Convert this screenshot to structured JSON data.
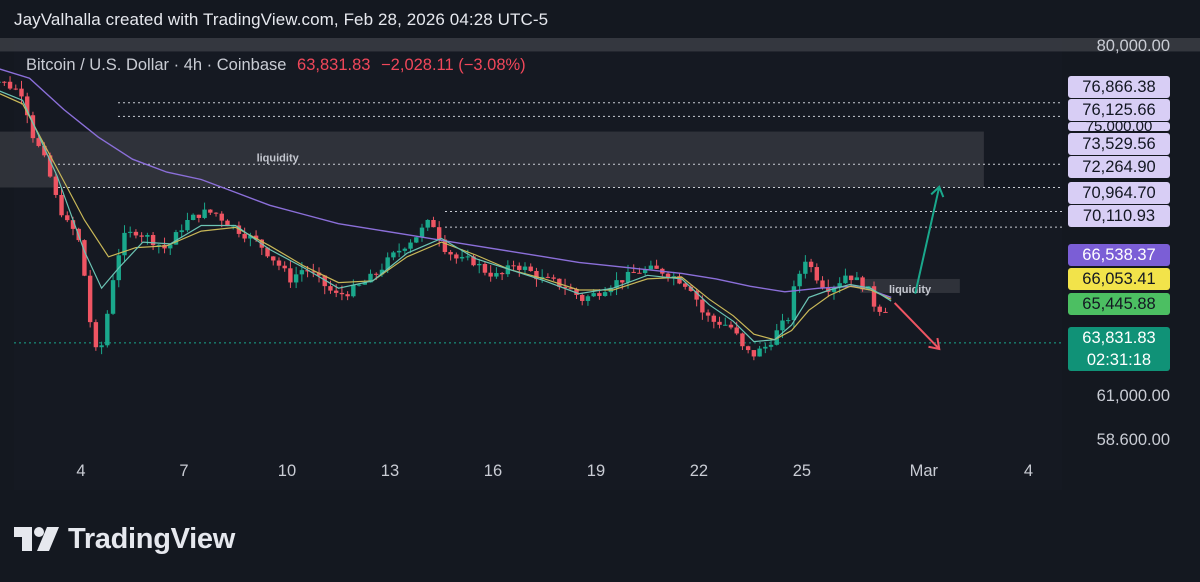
{
  "header": {
    "credit": "JayValhalla created with TradingView.com, Feb 28, 2026 04:28 UTC-5"
  },
  "symbol": {
    "name": "Bitcoin / U.S. Dollar · 4h · Coinbase",
    "last": "63,831.83",
    "change": "−2,028.11 (−3.08%)"
  },
  "footer": {
    "logo_text": "TradingView",
    "logo_icon": "tradingview-logo-icon"
  },
  "colors": {
    "background": "#141820",
    "up": "#1aa88c",
    "down": "#ef5563",
    "sma_purple": "#8b6fd9",
    "ema_yellow": "#c9b858",
    "ema_teal": "#6cc4b4"
  },
  "chart_data": {
    "type": "candlestick",
    "title": "Bitcoin / U.S. Dollar · 4h · Coinbase",
    "interval": "4h",
    "last_price": 63831.83,
    "change": -2028.11,
    "change_percent": -3.08,
    "x_ticks": [
      "4",
      "7",
      "10",
      "13",
      "16",
      "19",
      "22",
      "25",
      "Mar",
      "4"
    ],
    "y_ticks": [
      80000.0,
      61000.0,
      58600.0
    ],
    "y_tick_labels": [
      "80,000.00",
      "61,000.00",
      "58.600.00"
    ],
    "ylim": [
      57600,
      80800
    ],
    "grid": false,
    "price_levels": [
      {
        "label": "76,866.38",
        "value": 76866.38,
        "bg": "#d8cef5",
        "line": "dotted"
      },
      {
        "label": "76,125.66",
        "value": 76125.66,
        "bg": "#d8cef5",
        "line": "dotted"
      },
      {
        "label": "75,000.00",
        "value": 75000.0,
        "bg": "#d8cef5",
        "line": "none"
      },
      {
        "label": "73,529.56",
        "value": 73529.56,
        "bg": "#d8cef5",
        "line": "dotted"
      },
      {
        "label": "72,264.90",
        "value": 72264.9,
        "bg": "#d8cef5",
        "line": "dotted"
      },
      {
        "label": "70,964.70",
        "value": 70964.7,
        "bg": "#d8cef5",
        "line": "dotted"
      },
      {
        "label": "70,110.93",
        "value": 70110.93,
        "bg": "#d8cef5",
        "line": "dotted"
      },
      {
        "label": "66,538.37",
        "value": 66538.37,
        "bg": "#7b5ed6",
        "line": "none"
      },
      {
        "label": "66,053.41",
        "value": 66053.41,
        "bg": "#f2e34a",
        "line": "none"
      },
      {
        "label": "65,445.88",
        "value": 65445.88,
        "bg": "#4cbf62",
        "line": "none"
      }
    ],
    "current_price_tag": {
      "price": "63,831.83",
      "countdown": "02:31:18"
    },
    "zones": [
      {
        "label": "",
        "x_start": 1.0,
        "x_end": 37.0,
        "y_low": 79650,
        "y_high": 80800
      },
      {
        "label": "liquidity",
        "x_start": 1.1,
        "x_end": 30.3,
        "y_low": 72264.9,
        "y_high": 75300
      },
      {
        "label": "liquidity",
        "x_start": 26.7,
        "x_end": 29.6,
        "y_low": 66538.37,
        "y_high": 67300
      }
    ],
    "arrows": [
      {
        "direction": "up",
        "color": "#1aa88c",
        "from": [
          28.3,
          66500
        ],
        "via": [
          28.3,
          66500
        ],
        "to": [
          29.0,
          72300
        ]
      },
      {
        "direction": "down",
        "color": "#ef5563",
        "from": [
          27.7,
          66000
        ],
        "to": [
          29.0,
          63500
        ]
      }
    ],
    "series_shape": {
      "close_path": [
        [
          1.1,
          78200
        ],
        [
          1.4,
          78200
        ],
        [
          1.8,
          77900
        ],
        [
          2.3,
          77400
        ],
        [
          2.6,
          75100
        ],
        [
          3.0,
          73500
        ],
        [
          3.3,
          71500
        ],
        [
          3.6,
          70300
        ],
        [
          3.9,
          69700
        ],
        [
          4.1,
          67500
        ],
        [
          4.3,
          64500
        ],
        [
          4.5,
          62800
        ],
        [
          4.7,
          64600
        ],
        [
          4.9,
          67100
        ],
        [
          5.2,
          69500
        ],
        [
          5.6,
          69900
        ],
        [
          6.0,
          69500
        ],
        [
          6.5,
          68900
        ],
        [
          7.0,
          70300
        ],
        [
          7.5,
          70900
        ],
        [
          7.9,
          70900
        ],
        [
          8.3,
          70300
        ],
        [
          8.8,
          69700
        ],
        [
          9.2,
          69200
        ],
        [
          9.7,
          68200
        ],
        [
          10.1,
          67300
        ],
        [
          10.5,
          67900
        ],
        [
          10.9,
          67300
        ],
        [
          11.4,
          66400
        ],
        [
          11.8,
          66600
        ],
        [
          12.2,
          67000
        ],
        [
          12.6,
          67600
        ],
        [
          13.0,
          68400
        ],
        [
          13.4,
          69100
        ],
        [
          13.8,
          69700
        ],
        [
          14.2,
          70500
        ],
        [
          14.6,
          69000
        ],
        [
          15.0,
          68300
        ],
        [
          15.4,
          68300
        ],
        [
          15.8,
          67700
        ],
        [
          16.2,
          67400
        ],
        [
          16.6,
          68100
        ],
        [
          17.0,
          67800
        ],
        [
          17.4,
          67300
        ],
        [
          17.8,
          67100
        ],
        [
          18.2,
          66800
        ],
        [
          18.6,
          66200
        ],
        [
          19.0,
          66500
        ],
        [
          19.4,
          67000
        ],
        [
          19.8,
          67300
        ],
        [
          20.2,
          67700
        ],
        [
          20.6,
          67800
        ],
        [
          21.0,
          67700
        ],
        [
          21.4,
          67300
        ],
        [
          21.8,
          66800
        ],
        [
          22.1,
          65500
        ],
        [
          22.4,
          65000
        ],
        [
          22.7,
          64900
        ],
        [
          23.0,
          64600
        ],
        [
          23.3,
          63400
        ],
        [
          23.6,
          63200
        ],
        [
          24.0,
          63700
        ],
        [
          24.3,
          64500
        ],
        [
          24.6,
          65200
        ],
        [
          24.8,
          67000
        ],
        [
          25.1,
          68400
        ],
        [
          25.4,
          67500
        ],
        [
          25.7,
          66800
        ],
        [
          26.0,
          67000
        ],
        [
          26.3,
          67600
        ],
        [
          26.6,
          67200
        ],
        [
          26.9,
          66800
        ],
        [
          27.2,
          65500
        ],
        [
          27.4,
          66100
        ],
        [
          27.6,
          63700
        ]
      ],
      "ema_yellow_path": [
        [
          1.1,
          77800
        ],
        [
          2.3,
          76800
        ],
        [
          3.3,
          73300
        ],
        [
          4.1,
          70500
        ],
        [
          4.8,
          68500
        ],
        [
          5.6,
          69000
        ],
        [
          6.5,
          69100
        ],
        [
          7.5,
          69900
        ],
        [
          8.5,
          70100
        ],
        [
          9.5,
          69100
        ],
        [
          10.5,
          68000
        ],
        [
          11.5,
          67100
        ],
        [
          12.5,
          67200
        ],
        [
          13.5,
          68500
        ],
        [
          14.5,
          69300
        ],
        [
          15.5,
          68600
        ],
        [
          16.5,
          67800
        ],
        [
          17.5,
          67300
        ],
        [
          18.5,
          66700
        ],
        [
          19.5,
          66700
        ],
        [
          20.5,
          67300
        ],
        [
          21.5,
          67400
        ],
        [
          22.3,
          66200
        ],
        [
          23.0,
          65300
        ],
        [
          23.6,
          64300
        ],
        [
          24.2,
          64000
        ],
        [
          24.7,
          64500
        ],
        [
          25.2,
          65600
        ],
        [
          25.8,
          66400
        ],
        [
          26.4,
          66900
        ],
        [
          27.0,
          66700
        ],
        [
          27.6,
          66200
        ]
      ],
      "ema_teal_path": [
        [
          1.1,
          77900
        ],
        [
          2.3,
          77000
        ],
        [
          3.3,
          72900
        ],
        [
          4.1,
          68800
        ],
        [
          4.6,
          66800
        ],
        [
          5.1,
          67900
        ],
        [
          5.8,
          69300
        ],
        [
          6.6,
          69200
        ],
        [
          7.5,
          70200
        ],
        [
          8.5,
          70200
        ],
        [
          9.5,
          68900
        ],
        [
          10.5,
          67900
        ],
        [
          11.5,
          66800
        ],
        [
          12.5,
          67200
        ],
        [
          13.5,
          68700
        ],
        [
          14.5,
          69500
        ],
        [
          15.5,
          68400
        ],
        [
          16.5,
          67800
        ],
        [
          17.5,
          67200
        ],
        [
          18.5,
          66500
        ],
        [
          19.5,
          66800
        ],
        [
          20.5,
          67500
        ],
        [
          21.5,
          67300
        ],
        [
          22.3,
          65900
        ],
        [
          23.0,
          65000
        ],
        [
          23.6,
          63900
        ],
        [
          24.2,
          64000
        ],
        [
          24.7,
          64800
        ],
        [
          25.2,
          66300
        ],
        [
          25.8,
          66700
        ],
        [
          26.4,
          67000
        ],
        [
          27.0,
          66800
        ],
        [
          27.6,
          66100
        ]
      ],
      "sma_purple_path": [
        [
          1.1,
          79000
        ],
        [
          2.5,
          78200
        ],
        [
          3.5,
          76500
        ],
        [
          4.5,
          75000
        ],
        [
          5.5,
          73800
        ],
        [
          6.5,
          73100
        ],
        [
          7.5,
          72700
        ],
        [
          8.5,
          72000
        ],
        [
          9.5,
          71300
        ],
        [
          10.5,
          70800
        ],
        [
          11.5,
          70300
        ],
        [
          12.5,
          70000
        ],
        [
          13.5,
          69700
        ],
        [
          14.5,
          69400
        ],
        [
          15.5,
          69100
        ],
        [
          16.5,
          68800
        ],
        [
          17.5,
          68500
        ],
        [
          18.5,
          68200
        ],
        [
          19.5,
          68000
        ],
        [
          20.5,
          67800
        ],
        [
          21.5,
          67600
        ],
        [
          22.5,
          67300
        ],
        [
          23.5,
          66900
        ],
        [
          24.5,
          66600
        ],
        [
          25.5,
          66800
        ],
        [
          26.5,
          66900
        ],
        [
          27.0,
          66700
        ],
        [
          27.6,
          66300
        ]
      ]
    }
  }
}
